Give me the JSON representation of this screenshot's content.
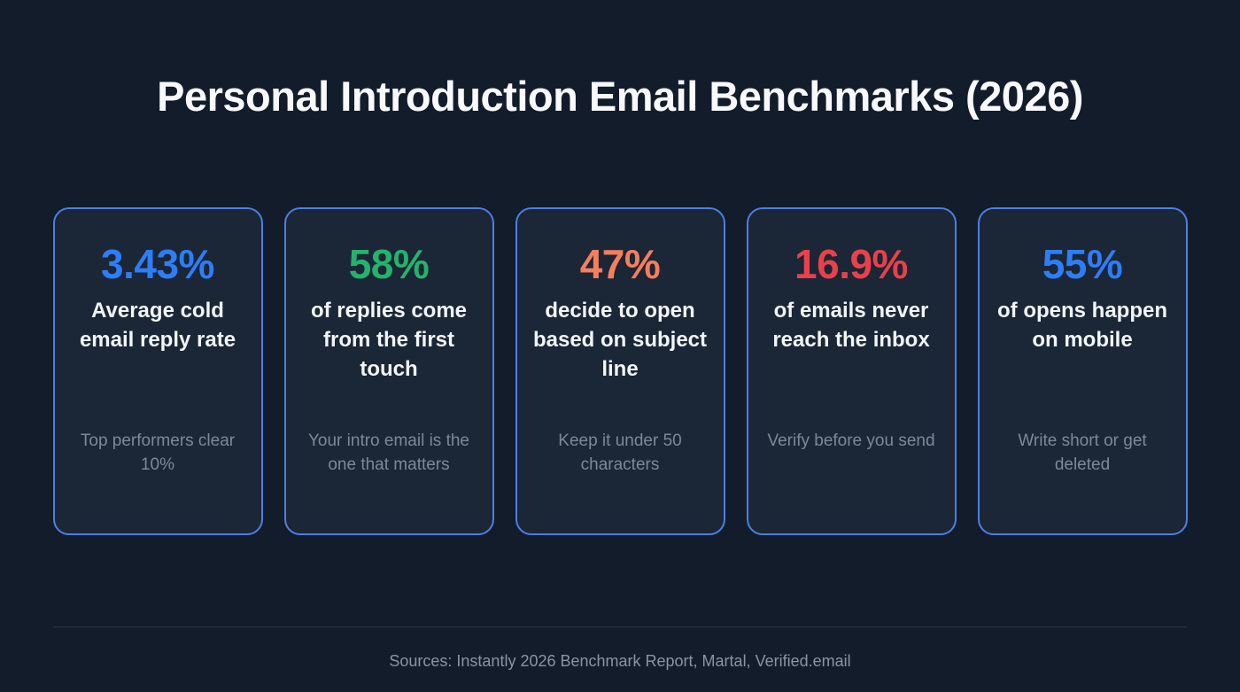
{
  "page": {
    "title": "Personal Introduction Email Benchmarks (2026)",
    "footer": "Sources: Instantly 2026 Benchmark Report, Martal, Verified.email"
  },
  "colors": {
    "background": "#131c2a",
    "card_background": "#1b2636",
    "card_border": "#4d7fe3",
    "blue": "#2e7df6",
    "green": "#25b36b",
    "orange": "#f57e5d",
    "red": "#e8414b",
    "headline_text": "#f2f5f9",
    "subtext_text": "#7f8898"
  },
  "cards": [
    {
      "stat": "3.43%",
      "color": "#2e7df6",
      "headline": "Average cold email reply rate",
      "subtext": "Top performers clear 10%"
    },
    {
      "stat": "58%",
      "color": "#25b36b",
      "headline": "of replies come from the first touch",
      "subtext": "Your intro email is the one that matters"
    },
    {
      "stat": "47%",
      "color": "#f57e5d",
      "headline": "decide to open based on subject line",
      "subtext": "Keep it under 50 characters"
    },
    {
      "stat": "16.9%",
      "color": "#e8414b",
      "headline": "of emails never reach the inbox",
      "subtext": "Verify before you send"
    },
    {
      "stat": "55%",
      "color": "#2e7df6",
      "headline": "of opens happen on mobile",
      "subtext": "Write short or get deleted"
    }
  ],
  "chart_data": {
    "type": "table",
    "title": "Personal Introduction Email Benchmarks (2026)",
    "categories": [
      "Average cold email reply rate",
      "of replies come from the first touch",
      "decide to open based on subject line",
      "of emails never reach the inbox",
      "of opens happen on mobile"
    ],
    "values": [
      3.43,
      58,
      47,
      16.9,
      55
    ],
    "unit": "%",
    "notes": [
      "Top performers clear 10%",
      "Your intro email is the one that matters",
      "Keep it under 50 characters",
      "Verify before you send",
      "Write short or get deleted"
    ],
    "source": "Sources: Instantly 2026 Benchmark Report, Martal, Verified.email"
  }
}
